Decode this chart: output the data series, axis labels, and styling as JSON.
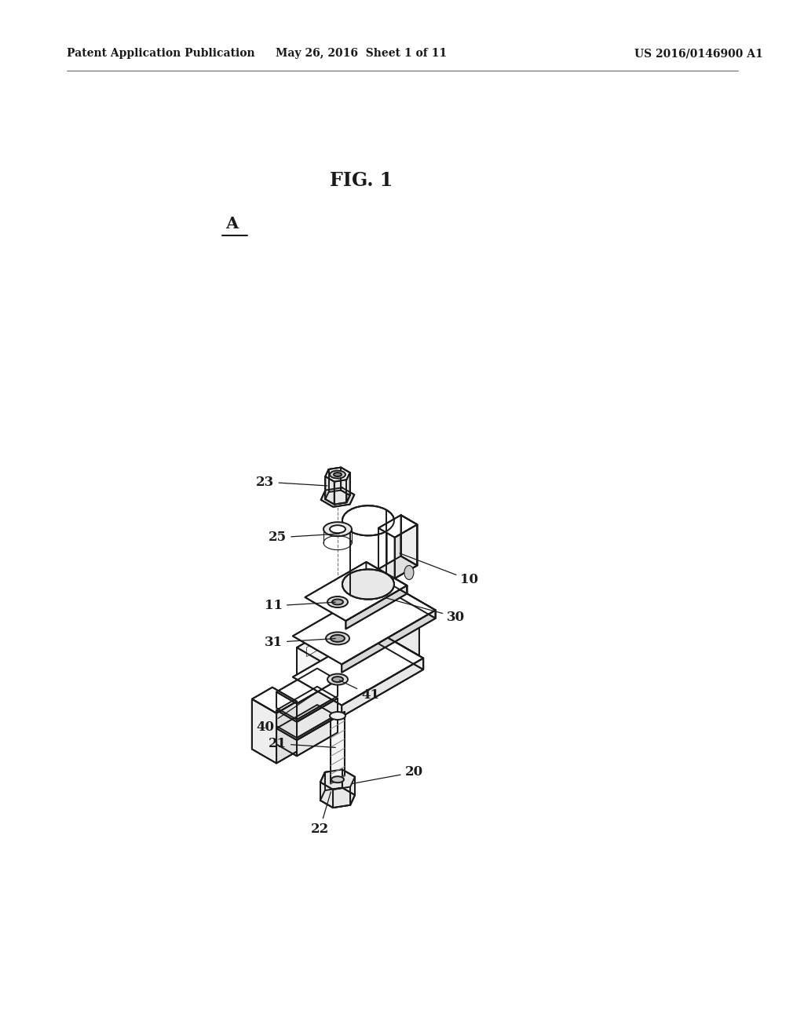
{
  "title": "FIG. 1",
  "header_left": "Patent Application Publication",
  "header_mid": "May 26, 2016  Sheet 1 of 11",
  "header_right": "US 2016/0146900 A1",
  "fig_label": "A",
  "background_color": "#ffffff",
  "line_color": "#1a1a1a",
  "line_width": 1.4,
  "fig_width": 10.24,
  "fig_height": 13.2,
  "dpi": 100
}
